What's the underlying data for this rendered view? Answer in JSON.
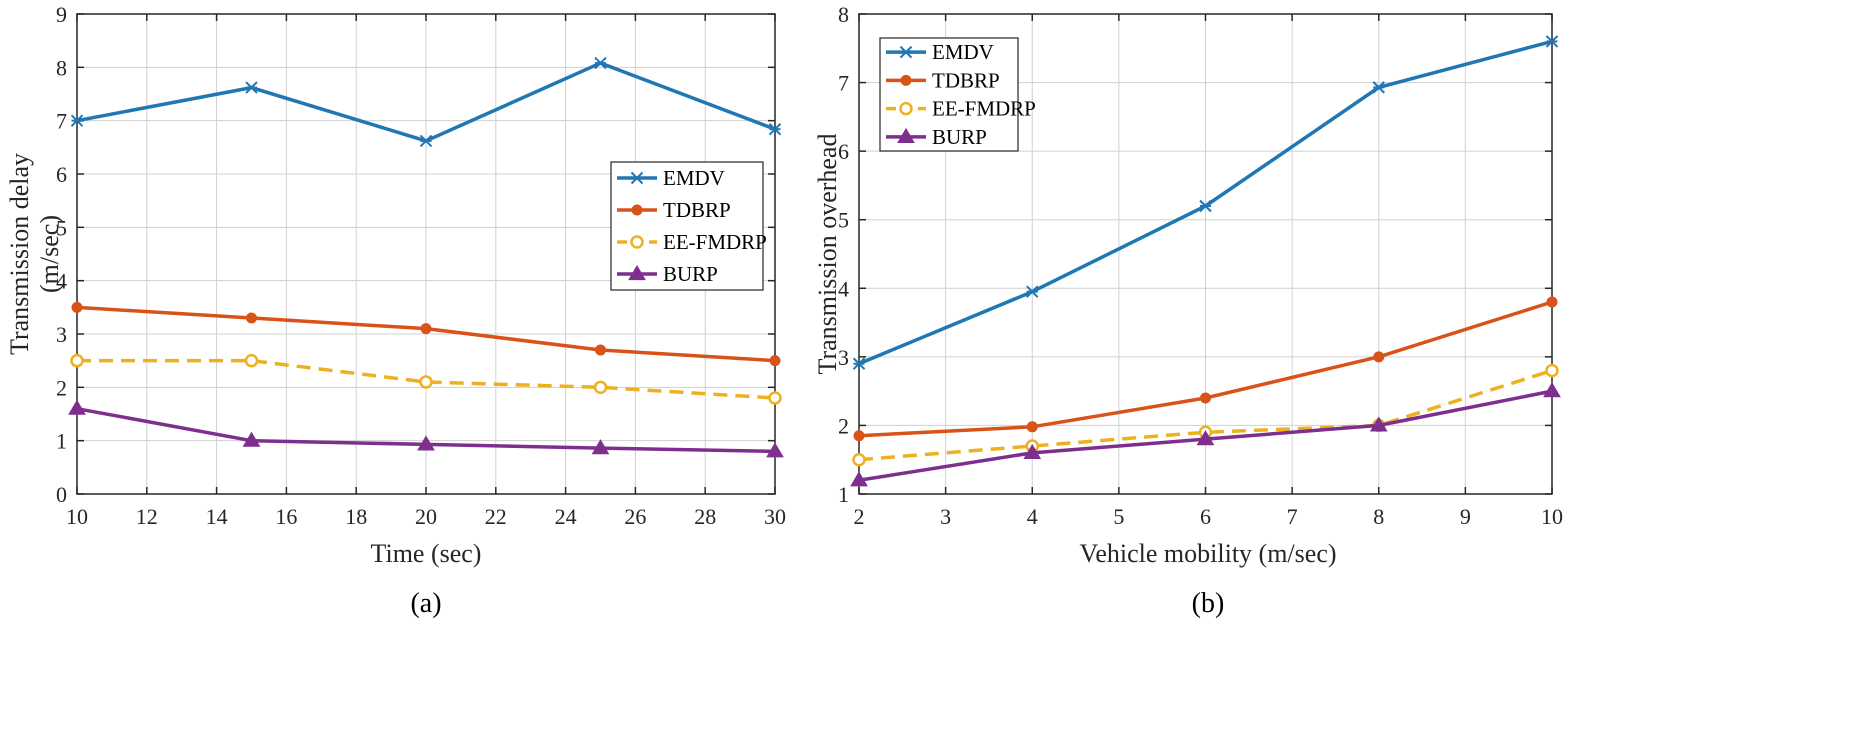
{
  "chart_data": [
    {
      "type": "line",
      "caption": "(a)",
      "xlabel": "Time (sec)",
      "ylabel": [
        "Transmission delay",
        "(m/sec)"
      ],
      "xlim": [
        10,
        30
      ],
      "ylim": [
        0,
        9
      ],
      "xticks": [
        10,
        12,
        14,
        16,
        18,
        20,
        22,
        24,
        26,
        28,
        30
      ],
      "yticks": [
        0,
        1,
        2,
        3,
        4,
        5,
        6,
        7,
        8,
        9
      ],
      "grid": true,
      "legend_position": "center-right",
      "x": [
        10,
        15,
        20,
        25,
        30
      ],
      "series": [
        {
          "name": "EMDV",
          "values": [
            7.0,
            7.62,
            6.62,
            8.08,
            6.84
          ],
          "color": "#1f77b4",
          "marker": "star",
          "dash": false
        },
        {
          "name": "TDBRP",
          "values": [
            3.5,
            3.3,
            3.1,
            2.7,
            2.5
          ],
          "color": "#d95319",
          "marker": "dot",
          "dash": false
        },
        {
          "name": "EE-FMDRP",
          "values": [
            2.5,
            2.5,
            2.1,
            2.0,
            1.8
          ],
          "color": "#edb120",
          "marker": "circle",
          "dash": true
        },
        {
          "name": "BURP",
          "values": [
            1.6,
            1.0,
            0.93,
            0.86,
            0.8
          ],
          "color": "#7e2f8e",
          "marker": "triangle",
          "dash": false
        }
      ]
    },
    {
      "type": "line",
      "caption": "(b)",
      "xlabel": "Vehicle mobility (m/sec)",
      "ylabel": [
        "Transmission overhead"
      ],
      "xlim": [
        2,
        10
      ],
      "ylim": [
        1,
        8
      ],
      "xticks": [
        2,
        3,
        4,
        5,
        6,
        7,
        8,
        9,
        10
      ],
      "yticks": [
        1,
        2,
        3,
        4,
        5,
        6,
        7,
        8
      ],
      "grid": true,
      "legend_position": "top-left",
      "x": [
        2,
        4,
        6,
        8,
        10
      ],
      "series": [
        {
          "name": "EMDV",
          "values": [
            2.9,
            3.95,
            5.2,
            6.93,
            7.6
          ],
          "color": "#1f77b4",
          "marker": "star",
          "dash": false
        },
        {
          "name": "TDBRP",
          "values": [
            1.85,
            1.98,
            2.4,
            3.0,
            3.8
          ],
          "color": "#d95319",
          "marker": "dot",
          "dash": false
        },
        {
          "name": "EE-FMDRP",
          "values": [
            1.5,
            1.7,
            1.9,
            2.0,
            2.8
          ],
          "color": "#edb120",
          "marker": "circle",
          "dash": true
        },
        {
          "name": "BURP",
          "values": [
            1.2,
            1.6,
            1.8,
            2.0,
            2.5
          ],
          "color": "#7e2f8e",
          "marker": "triangle",
          "dash": false
        }
      ]
    }
  ]
}
